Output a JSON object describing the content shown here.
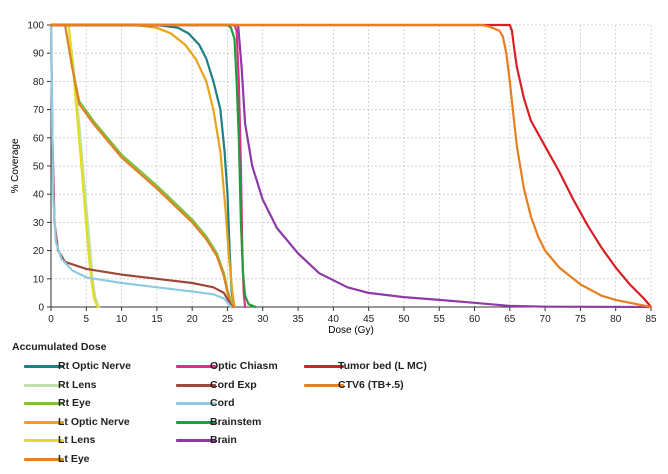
{
  "chart_data": {
    "type": "line",
    "title": "",
    "xlabel": "Dose (Gy)",
    "ylabel": "% Coverage",
    "xlim": [
      0,
      85
    ],
    "ylim": [
      0,
      100
    ],
    "xticks": [
      0,
      5,
      10,
      15,
      20,
      25,
      30,
      35,
      40,
      45,
      50,
      55,
      60,
      65,
      70,
      75,
      80,
      85
    ],
    "yticks": [
      0,
      10,
      20,
      30,
      40,
      50,
      60,
      70,
      80,
      90,
      100
    ],
    "grid": true,
    "legend_title": "Accumulated Dose",
    "legend_position": "bottom",
    "series": [
      {
        "name": "Rt Optic Nerve",
        "color": "#1f7f86",
        "points": [
          [
            0,
            100
          ],
          [
            15,
            100
          ],
          [
            18,
            99
          ],
          [
            19.5,
            97
          ],
          [
            21,
            93
          ],
          [
            22,
            88
          ],
          [
            23,
            80
          ],
          [
            24,
            70
          ],
          [
            24.6,
            55
          ],
          [
            25,
            40
          ],
          [
            25.3,
            20
          ],
          [
            25.6,
            5
          ],
          [
            26,
            0
          ]
        ]
      },
      {
        "name": "Rt Lens",
        "color": "#bfe0a8",
        "points": [
          [
            0,
            100
          ],
          [
            2.5,
            100
          ],
          [
            3.2,
            85
          ],
          [
            4,
            65
          ],
          [
            4.5,
            50
          ],
          [
            5,
            36
          ],
          [
            5.5,
            22
          ],
          [
            5.9,
            10
          ],
          [
            6.3,
            3
          ],
          [
            6.8,
            0
          ]
        ]
      },
      {
        "name": "Rt Eye",
        "color": "#7ec13c",
        "points": [
          [
            0,
            100
          ],
          [
            2,
            100
          ],
          [
            3,
            85
          ],
          [
            4,
            73
          ],
          [
            6,
            66
          ],
          [
            10,
            54
          ],
          [
            15,
            43
          ],
          [
            20,
            31
          ],
          [
            22,
            25
          ],
          [
            23.5,
            19
          ],
          [
            24.5,
            12
          ],
          [
            25,
            6
          ],
          [
            25.5,
            2
          ],
          [
            26,
            0
          ]
        ]
      },
      {
        "name": "Lt Optic Nerve",
        "color": "#e8a317",
        "points": [
          [
            0,
            100
          ],
          [
            12,
            100
          ],
          [
            15,
            99
          ],
          [
            17,
            97
          ],
          [
            19,
            93
          ],
          [
            20.5,
            88
          ],
          [
            22,
            80
          ],
          [
            23,
            70
          ],
          [
            24,
            55
          ],
          [
            24.7,
            35
          ],
          [
            25.2,
            18
          ],
          [
            25.7,
            5
          ],
          [
            26,
            0
          ]
        ]
      },
      {
        "name": "Lt Lens",
        "color": "#e3dc20",
        "points": [
          [
            0,
            100
          ],
          [
            2.5,
            100
          ],
          [
            3.1,
            85
          ],
          [
            3.8,
            65
          ],
          [
            4.3,
            50
          ],
          [
            4.8,
            35
          ],
          [
            5.3,
            20
          ],
          [
            5.7,
            10
          ],
          [
            6.1,
            3
          ],
          [
            6.6,
            0
          ]
        ]
      },
      {
        "name": "Lt Eye",
        "color": "#e0822a",
        "points": [
          [
            0,
            100
          ],
          [
            2,
            100
          ],
          [
            3,
            85
          ],
          [
            4,
            72
          ],
          [
            6,
            65
          ],
          [
            10,
            53
          ],
          [
            15,
            42
          ],
          [
            20,
            30
          ],
          [
            22,
            24
          ],
          [
            23.5,
            18
          ],
          [
            24.5,
            11
          ],
          [
            25,
            5
          ],
          [
            25.5,
            1
          ],
          [
            26,
            0
          ]
        ]
      },
      {
        "name": "Optic Chiasm",
        "color": "#dd2f8a",
        "points": [
          [
            0,
            100
          ],
          [
            26,
            100
          ],
          [
            26.3,
            98
          ],
          [
            26.6,
            80
          ],
          [
            26.9,
            50
          ],
          [
            27.1,
            20
          ],
          [
            27.3,
            5
          ],
          [
            27.5,
            0
          ]
        ]
      },
      {
        "name": "Cord Exp",
        "color": "#9b4a3a",
        "points": [
          [
            0,
            100
          ],
          [
            0.2,
            60
          ],
          [
            0.5,
            30
          ],
          [
            1,
            20
          ],
          [
            2,
            16
          ],
          [
            5,
            13.5
          ],
          [
            10,
            11.5
          ],
          [
            15,
            10
          ],
          [
            20,
            8.5
          ],
          [
            23,
            7
          ],
          [
            24.5,
            5
          ],
          [
            25.2,
            2
          ],
          [
            25.6,
            0
          ]
        ]
      },
      {
        "name": "Cord",
        "color": "#8fcbe0",
        "points": [
          [
            0,
            100
          ],
          [
            0.3,
            40
          ],
          [
            0.7,
            23
          ],
          [
            1.5,
            17
          ],
          [
            3,
            13
          ],
          [
            5,
            10.5
          ],
          [
            10,
            8.5
          ],
          [
            15,
            7
          ],
          [
            20,
            5.5
          ],
          [
            23,
            4.5
          ],
          [
            24.5,
            3
          ],
          [
            25.2,
            1
          ],
          [
            25.5,
            0
          ]
        ]
      },
      {
        "name": "Brainstem",
        "color": "#1f9e3a",
        "points": [
          [
            0,
            100
          ],
          [
            25,
            100
          ],
          [
            25.5,
            99
          ],
          [
            26,
            95
          ],
          [
            26.3,
            80
          ],
          [
            26.6,
            60
          ],
          [
            26.9,
            30
          ],
          [
            27.2,
            12
          ],
          [
            27.5,
            4
          ],
          [
            28,
            1
          ],
          [
            29,
            0
          ]
        ]
      },
      {
        "name": "Brain",
        "color": "#8e3aa6",
        "points": [
          [
            0,
            100
          ],
          [
            26.5,
            100
          ],
          [
            27,
            85
          ],
          [
            27.5,
            65
          ],
          [
            28.5,
            50
          ],
          [
            30,
            38
          ],
          [
            32,
            28
          ],
          [
            35,
            19
          ],
          [
            38,
            12
          ],
          [
            42,
            7
          ],
          [
            45,
            5
          ],
          [
            50,
            3.5
          ],
          [
            55,
            2.5
          ],
          [
            60,
            1.5
          ],
          [
            63,
            0.8
          ],
          [
            65,
            0.4
          ],
          [
            70,
            0.1
          ],
          [
            85,
            0
          ]
        ]
      },
      {
        "name": "Tumor bed (L MC)",
        "color": "#d91f26",
        "points": [
          [
            0,
            100
          ],
          [
            65,
            100
          ],
          [
            65.3,
            98
          ],
          [
            65.6,
            92
          ],
          [
            66,
            85
          ],
          [
            67,
            74
          ],
          [
            68,
            66
          ],
          [
            70,
            57
          ],
          [
            72,
            48
          ],
          [
            74,
            38
          ],
          [
            76,
            29
          ],
          [
            78,
            21
          ],
          [
            80,
            14
          ],
          [
            82,
            8
          ],
          [
            84,
            3
          ],
          [
            85,
            0
          ]
        ]
      },
      {
        "name": "CTV6 (TB+.5)",
        "color": "#e87e20",
        "points": [
          [
            0,
            100
          ],
          [
            61,
            100
          ],
          [
            62,
            99.5
          ],
          [
            63.5,
            98
          ],
          [
            64,
            96
          ],
          [
            64.5,
            90
          ],
          [
            65,
            80
          ],
          [
            65.5,
            68
          ],
          [
            66,
            57
          ],
          [
            67,
            42
          ],
          [
            68,
            32
          ],
          [
            69,
            25
          ],
          [
            70,
            20
          ],
          [
            72,
            14
          ],
          [
            75,
            8
          ],
          [
            78,
            4
          ],
          [
            80,
            2.5
          ],
          [
            83,
            1
          ],
          [
            85,
            0
          ]
        ]
      }
    ]
  }
}
